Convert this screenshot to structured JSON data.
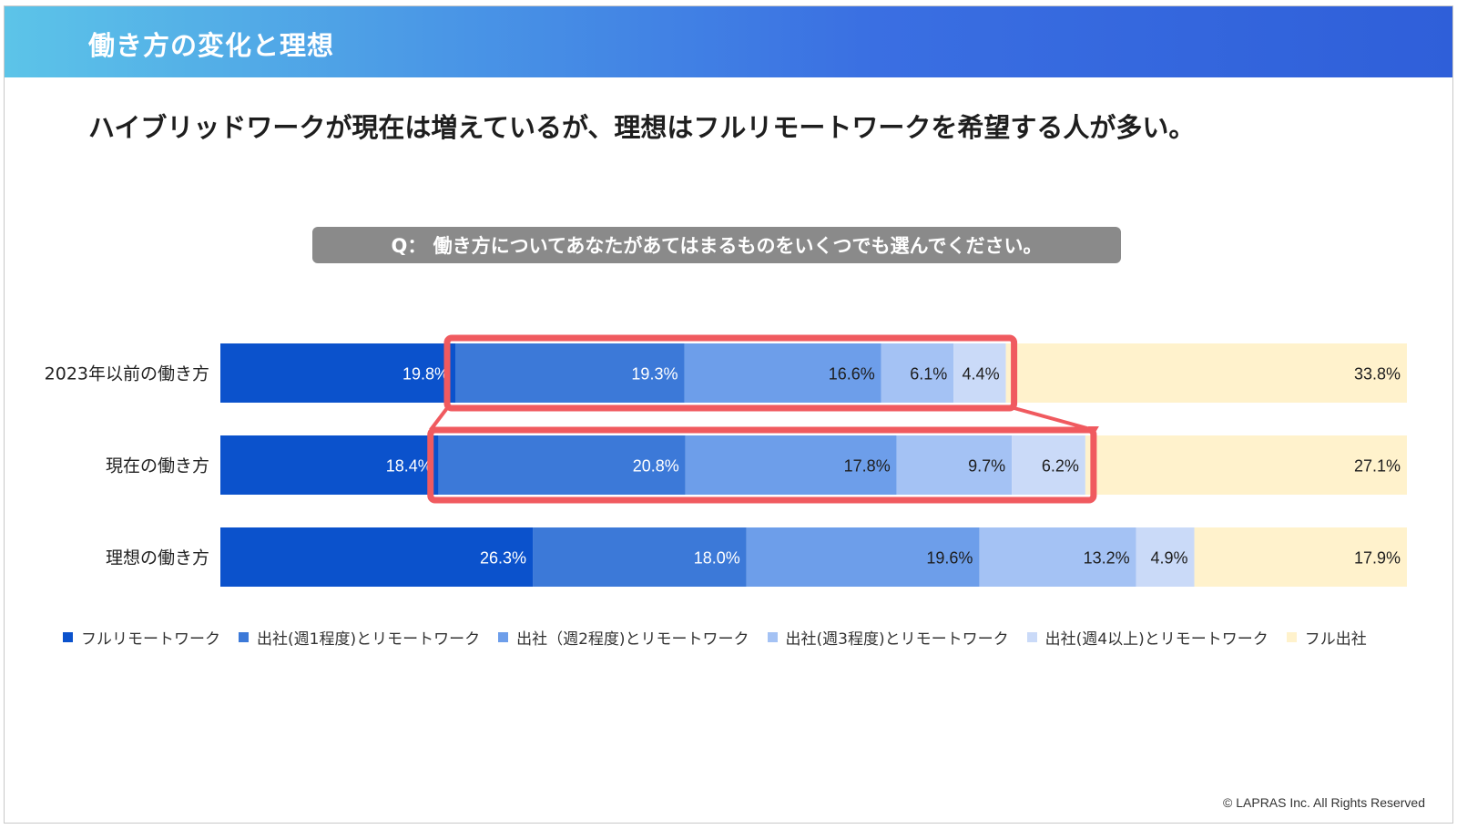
{
  "header": {
    "title": "働き方の変化と理想"
  },
  "headline": "ハイブリッドワークが現在は増えているが、理想はフルリモートワークを希望する人が多い。",
  "question": "Q： 働き方についてあなたがあてはまるものをいくつでも選んでください。",
  "copyright": "© LAPRAS Inc. All Rights Reserved",
  "chart_data": {
    "type": "bar",
    "orientation": "horizontal",
    "stacked": true,
    "normalized_percent": true,
    "categories": [
      "2023年以前の働き方",
      "現在の働き方",
      "理想の働き方"
    ],
    "series": [
      {
        "name": "フルリモートワーク",
        "color": "#0b52cc",
        "values": [
          19.8,
          18.4,
          26.3
        ]
      },
      {
        "name": "出社(週1程度)とリモートワーク",
        "color": "#3c79d8",
        "values": [
          19.3,
          20.8,
          18.0
        ]
      },
      {
        "name": "出社（週2程度)とリモートワーク",
        "color": "#6d9eea",
        "values": [
          16.6,
          17.8,
          19.6
        ]
      },
      {
        "name": "出社(週3程度)とリモートワーク",
        "color": "#a4c2f4",
        "values": [
          6.1,
          9.7,
          13.2
        ]
      },
      {
        "name": "出社(週4以上)とリモートワーク",
        "color": "#cadaf8",
        "values": [
          4.4,
          6.2,
          4.9
        ]
      },
      {
        "name": "フル出社",
        "color": "#fff2cc",
        "values": [
          33.8,
          27.1,
          17.9
        ]
      }
    ],
    "data_labels": [
      [
        "19.8%",
        "19.3%",
        "16.6%",
        "6.1%",
        "4.4%",
        "33.8%"
      ],
      [
        "18.4%",
        "20.8%",
        "17.8%",
        "9.7%",
        "6.2%",
        "27.1%"
      ],
      [
        "26.3%",
        "18.0%",
        "19.6%",
        "13.2%",
        "4.9%",
        "17.9%"
      ]
    ],
    "label_colors": [
      "#ffffff",
      "#ffffff",
      "#1e1e1e",
      "#1e1e1e",
      "#1e1e1e",
      "#1e1e1e"
    ],
    "legend_position": "bottom",
    "highlight": {
      "color": "#f05a5f",
      "rows": [
        0,
        1
      ],
      "series_from": 1,
      "series_to": 4
    }
  }
}
